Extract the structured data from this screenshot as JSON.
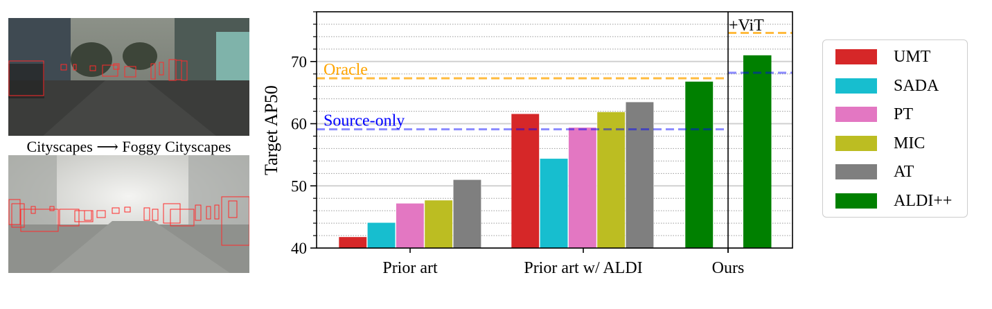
{
  "figure": {
    "caption": "Cityscapes ⟶ Foggy Cityscapes",
    "images": [
      {
        "name": "Cityscapes",
        "description": "clear street scene with red detection boxes"
      },
      {
        "name": "Foggy Cityscapes",
        "description": "foggy street scene with red detection boxes"
      }
    ]
  },
  "chart_data": {
    "type": "bar",
    "title": "",
    "xlabel": "",
    "ylabel": "Target AP50",
    "ylim": [
      40,
      78
    ],
    "yticks": [
      40,
      50,
      60,
      70
    ],
    "grid": {
      "major": true,
      "minor": true,
      "minor_style": "dotted"
    },
    "categories": [
      "Prior art",
      "Prior art w/ ALDI",
      "Ours"
    ],
    "series": [
      {
        "name": "UMT",
        "color": "#d62728",
        "values": [
          41.8,
          61.6,
          null
        ]
      },
      {
        "name": "SADA",
        "color": "#17becf",
        "values": [
          44.1,
          54.4,
          null
        ]
      },
      {
        "name": "PT",
        "color": "#e377c2",
        "values": [
          47.2,
          59.4,
          null
        ]
      },
      {
        "name": "MIC",
        "color": "#bcbd22",
        "values": [
          47.7,
          61.9,
          null
        ]
      },
      {
        "name": "AT",
        "color": "#7f7f7f",
        "values": [
          51.0,
          63.5,
          null
        ]
      },
      {
        "name": "ALDI++",
        "color": "#008000",
        "values": [
          null,
          null,
          66.8
        ]
      }
    ],
    "vit_panel": {
      "label": "+ViT",
      "bars": [
        {
          "name": "ALDI++",
          "color": "#008000",
          "value": 71.0
        }
      ],
      "oracle": 74.6,
      "source_only": 68.2
    },
    "reference_lines": [
      {
        "label": "Oracle",
        "value": 67.3,
        "color": "#ffa500",
        "style": "dashed"
      },
      {
        "label": "Source-only",
        "value": 59.1,
        "color": "#0000ff",
        "style": "dashed"
      }
    ],
    "legend": {
      "position": "right",
      "entries": [
        "UMT",
        "SADA",
        "PT",
        "MIC",
        "AT",
        "ALDI++"
      ]
    }
  }
}
